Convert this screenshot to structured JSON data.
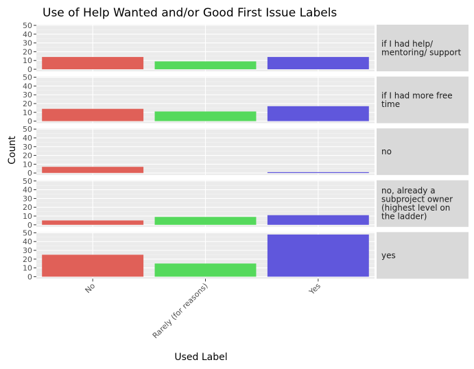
{
  "chart_data": {
    "type": "bar",
    "title": "Use of Help Wanted and/or Good First Issue Labels",
    "xlabel": "Used Label",
    "ylabel": "Count",
    "categories": [
      "No",
      "Rarely (for reasons)",
      "Yes"
    ],
    "ylim": [
      0,
      50
    ],
    "yticks": [
      0,
      10,
      20,
      30,
      40,
      50
    ],
    "colors": [
      "#e06058",
      "#55d95c",
      "#6057dc"
    ],
    "grid": true,
    "legend": "none",
    "facets": [
      {
        "label": "if I had help/ mentoring/ support",
        "lines": [
          "if I had help/",
          "mentoring/ support"
        ],
        "values": [
          14,
          9,
          14
        ]
      },
      {
        "label": "if I had more free time",
        "lines": [
          "if I had more free",
          "time"
        ],
        "values": [
          14,
          11,
          17
        ]
      },
      {
        "label": "no",
        "lines": [
          "no"
        ],
        "values": [
          7,
          0,
          1
        ]
      },
      {
        "label": "no, already a subproject owner (highest level on the ladder)",
        "lines": [
          "no, already a",
          "subproject owner",
          "(highest level on",
          "the ladder)"
        ],
        "values": [
          5,
          9,
          11
        ]
      },
      {
        "label": "yes",
        "lines": [
          "yes"
        ],
        "values": [
          25,
          15,
          48
        ]
      }
    ]
  }
}
